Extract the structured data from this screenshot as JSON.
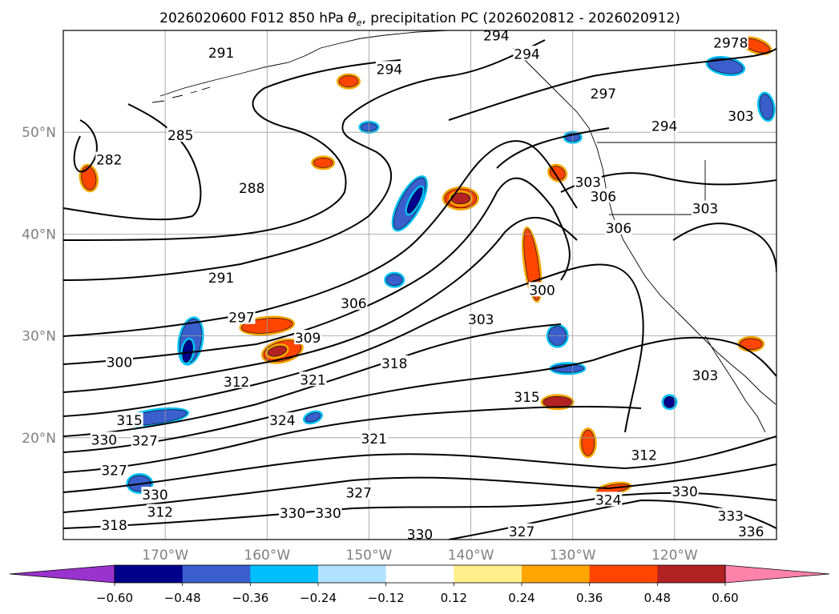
{
  "title_plain": "2026020600 F012 850 hPa ",
  "title_symbol": "θ",
  "title_sub": "e",
  "title_tail": ", precipitation PC (2026020812 - 2026020912)",
  "map": {
    "lon_range": [
      -180,
      -110
    ],
    "lat_range": [
      10,
      60
    ],
    "lon_ticks": [
      {
        "lon": -170,
        "label": "170°W"
      },
      {
        "lon": -160,
        "label": "160°W"
      },
      {
        "lon": -150,
        "label": "150°W"
      },
      {
        "lon": -140,
        "label": "140°W"
      },
      {
        "lon": -130,
        "label": "130°W"
      },
      {
        "lon": -120,
        "label": "120°W"
      }
    ],
    "lat_ticks": [
      {
        "lat": 20,
        "label": "20°N"
      },
      {
        "lat": 30,
        "label": "30°N"
      },
      {
        "lat": 40,
        "label": "40°N"
      },
      {
        "lat": 50,
        "label": "50°N"
      }
    ],
    "grid": true
  },
  "contour_labels": [
    {
      "text": "291",
      "lon": -164.5,
      "lat": 57.8
    },
    {
      "text": "294",
      "lon": -148,
      "lat": 56.2
    },
    {
      "text": "294",
      "lon": -137.5,
      "lat": 59.5
    },
    {
      "text": "294",
      "lon": -134.5,
      "lat": 57.7
    },
    {
      "text": "2978",
      "lon": -114.5,
      "lat": 58.8
    },
    {
      "text": "297",
      "lon": -127,
      "lat": 53.8
    },
    {
      "text": "294",
      "lon": -121,
      "lat": 50.6
    },
    {
      "text": "303",
      "lon": -113.5,
      "lat": 51.6
    },
    {
      "text": "285",
      "lon": -168.5,
      "lat": 49.7
    },
    {
      "text": "282",
      "lon": -175.5,
      "lat": 47.3
    },
    {
      "text": "288",
      "lon": -161.5,
      "lat": 44.5
    },
    {
      "text": "303",
      "lon": -128.5,
      "lat": 45.1
    },
    {
      "text": "306",
      "lon": -127,
      "lat": 43.7
    },
    {
      "text": "303",
      "lon": -117,
      "lat": 42.5
    },
    {
      "text": "306",
      "lon": -125.5,
      "lat": 40.6
    },
    {
      "text": "291",
      "lon": -164.5,
      "lat": 35.7
    },
    {
      "text": "300",
      "lon": -133,
      "lat": 34.5
    },
    {
      "text": "306",
      "lon": -151.5,
      "lat": 33.2
    },
    {
      "text": "297",
      "lon": -162.5,
      "lat": 31.8
    },
    {
      "text": "303",
      "lon": -139,
      "lat": 31.6
    },
    {
      "text": "309",
      "lon": -156,
      "lat": 29.8
    },
    {
      "text": "300",
      "lon": -174.5,
      "lat": 27.4
    },
    {
      "text": "318",
      "lon": -147.5,
      "lat": 27.3
    },
    {
      "text": "321",
      "lon": -155.5,
      "lat": 25.7
    },
    {
      "text": "312",
      "lon": -163,
      "lat": 25.5
    },
    {
      "text": "303",
      "lon": -117,
      "lat": 26.1
    },
    {
      "text": "315",
      "lon": -134.5,
      "lat": 24.0
    },
    {
      "text": "315",
      "lon": -173.5,
      "lat": 21.7
    },
    {
      "text": "324",
      "lon": -158.5,
      "lat": 21.7
    },
    {
      "text": "330",
      "lon": -176,
      "lat": 19.8
    },
    {
      "text": "327",
      "lon": -172,
      "lat": 19.7
    },
    {
      "text": "321",
      "lon": -149.5,
      "lat": 19.9
    },
    {
      "text": "312",
      "lon": -123,
      "lat": 18.3
    },
    {
      "text": "327",
      "lon": -175,
      "lat": 16.8
    },
    {
      "text": "330",
      "lon": -171,
      "lat": 14.4
    },
    {
      "text": "327",
      "lon": -151,
      "lat": 14.6
    },
    {
      "text": "330",
      "lon": -119,
      "lat": 14.7
    },
    {
      "text": "324",
      "lon": -126.5,
      "lat": 13.9
    },
    {
      "text": "312",
      "lon": -170.5,
      "lat": 12.7
    },
    {
      "text": "330",
      "lon": -157.5,
      "lat": 12.6
    },
    {
      "text": "330",
      "lon": -154,
      "lat": 12.6
    },
    {
      "text": "333",
      "lon": -114.5,
      "lat": 12.3
    },
    {
      "text": "318",
      "lon": -175,
      "lat": 11.4
    },
    {
      "text": "336",
      "lon": -112.5,
      "lat": 10.8
    },
    {
      "text": "330",
      "lon": -145,
      "lat": 10.5
    },
    {
      "text": "327",
      "lon": -135,
      "lat": 10.8
    }
  ],
  "colorbar": {
    "ticks": [
      "−0.60",
      "−0.48",
      "−0.36",
      "−0.24",
      "−0.12",
      "0.12",
      "0.24",
      "0.36",
      "0.48",
      "0.60"
    ],
    "colors": [
      "#9a32cd",
      "#00008b",
      "#3a5fcd",
      "#00bfff",
      "#b0e2ff",
      "#ffffff",
      "#fff08c",
      "#ffa500",
      "#ff4500",
      "#b22222",
      "#ff82ab"
    ]
  },
  "blobs": [
    {
      "lon": -167.5,
      "lat": 29.5,
      "rx": 13,
      "ry": 28,
      "rot": 10,
      "color": "#3a5fcd"
    },
    {
      "lon": -167.8,
      "lat": 28.5,
      "rx": 6,
      "ry": 14,
      "rot": 10,
      "color": "#00008b"
    },
    {
      "lon": -171,
      "lat": 22,
      "rx": 40,
      "ry": 8,
      "rot": -8,
      "color": "#3a5fcd"
    },
    {
      "lon": -146,
      "lat": 43,
      "rx": 12,
      "ry": 36,
      "rot": 28,
      "color": "#3a5fcd"
    },
    {
      "lon": -145.5,
      "lat": 43.3,
      "rx": 5,
      "ry": 18,
      "rot": 28,
      "color": "#00008b"
    },
    {
      "lon": -177.5,
      "lat": 45.5,
      "rx": 9,
      "ry": 15,
      "rot": -10,
      "color": "#ff4500"
    },
    {
      "lon": -160,
      "lat": 31,
      "rx": 32,
      "ry": 9,
      "rot": -5,
      "color": "#ff4500"
    },
    {
      "lon": -158.5,
      "lat": 28.5,
      "rx": 24,
      "ry": 12,
      "rot": -15,
      "color": "#ff4500"
    },
    {
      "lon": -159,
      "lat": 28.5,
      "rx": 12,
      "ry": 6,
      "rot": -15,
      "color": "#b22222"
    },
    {
      "lon": -141,
      "lat": 43.5,
      "rx": 20,
      "ry": 12,
      "rot": 0,
      "color": "#ff4500"
    },
    {
      "lon": -141,
      "lat": 43.5,
      "rx": 12,
      "ry": 7,
      "rot": 0,
      "color": "#b22222"
    },
    {
      "lon": -134,
      "lat": 37,
      "rx": 8,
      "ry": 45,
      "rot": -8,
      "color": "#ff4500"
    },
    {
      "lon": -128.5,
      "lat": 19.5,
      "rx": 8,
      "ry": 16,
      "rot": 0,
      "color": "#ff4500"
    },
    {
      "lon": -131.5,
      "lat": 23.5,
      "rx": 18,
      "ry": 7,
      "rot": 0,
      "color": "#b22222"
    },
    {
      "lon": -154.5,
      "lat": 47,
      "rx": 12,
      "ry": 6,
      "rot": 0,
      "color": "#ff4500"
    },
    {
      "lon": -131.5,
      "lat": 46,
      "rx": 10,
      "ry": 8,
      "rot": 30,
      "color": "#ff4500"
    },
    {
      "lon": -131.5,
      "lat": 30,
      "rx": 11,
      "ry": 12,
      "rot": 0,
      "color": "#3a5fcd"
    },
    {
      "lon": -120.5,
      "lat": 23.5,
      "rx": 7,
      "ry": 7,
      "rot": 0,
      "color": "#00008b"
    },
    {
      "lon": -130.5,
      "lat": 26.8,
      "rx": 20,
      "ry": 5,
      "rot": 0,
      "color": "#3a5fcd"
    },
    {
      "lon": -115,
      "lat": 56.5,
      "rx": 22,
      "ry": 9,
      "rot": 10,
      "color": "#3a5fcd"
    },
    {
      "lon": -111,
      "lat": 52.5,
      "rx": 8,
      "ry": 16,
      "rot": -10,
      "color": "#3a5fcd"
    },
    {
      "lon": -112,
      "lat": 58.5,
      "rx": 18,
      "ry": 7,
      "rot": 20,
      "color": "#ff4500"
    },
    {
      "lon": -112.5,
      "lat": 29.2,
      "rx": 14,
      "ry": 7,
      "rot": 0,
      "color": "#ff4500"
    },
    {
      "lon": -126,
      "lat": 15,
      "rx": 20,
      "ry": 5,
      "rot": -10,
      "color": "#ff4500"
    },
    {
      "lon": -152,
      "lat": 55,
      "rx": 12,
      "ry": 7,
      "rot": 0,
      "color": "#ff4500"
    },
    {
      "lon": -147.5,
      "lat": 35.5,
      "rx": 10,
      "ry": 7,
      "rot": 0,
      "color": "#3a5fcd"
    },
    {
      "lon": -150,
      "lat": 50.5,
      "rx": 10,
      "ry": 5,
      "rot": 0,
      "color": "#3a5fcd"
    },
    {
      "lon": -172.5,
      "lat": 15.5,
      "rx": 14,
      "ry": 10,
      "rot": 0,
      "color": "#3a5fcd"
    },
    {
      "lon": -130,
      "lat": 49.5,
      "rx": 9,
      "ry": 5,
      "rot": 0,
      "color": "#3a5fcd"
    },
    {
      "lon": -155.5,
      "lat": 22,
      "rx": 10,
      "ry": 5,
      "rot": -20,
      "color": "#3a5fcd"
    }
  ]
}
